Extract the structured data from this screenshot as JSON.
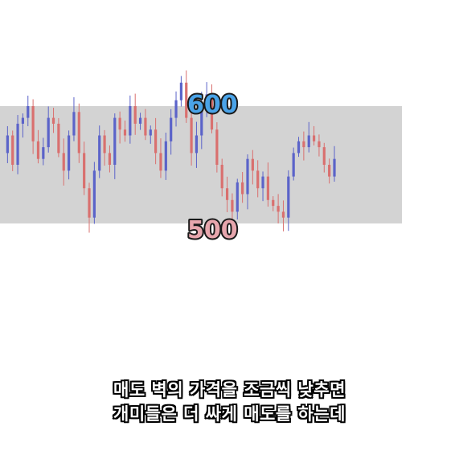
{
  "chart_data": {
    "type": "candlestick",
    "band": {
      "low": 500,
      "high": 600,
      "color": "#d3d3d3"
    },
    "levels": [
      {
        "label": "600",
        "value": 600,
        "color": "#4aa3e8"
      },
      {
        "label": "500",
        "value": 500,
        "color": "#e7a6ad"
      }
    ],
    "colors": {
      "up": "#5b63c9",
      "down": "#d9706f"
    },
    "series": [
      {
        "values": [
          560,
          575,
          550,
          585,
          590,
          600,
          570,
          555,
          565,
          590,
          585,
          560,
          545,
          575,
          595,
          560,
          530,
          505,
          545,
          575,
          560,
          550,
          590,
          580,
          575,
          600,
          585,
          590,
          575,
          580,
          560,
          545,
          570,
          590,
          605,
          620,
          590,
          560,
          575,
          600,
          610,
          580,
          550,
          530,
          520,
          510,
          535,
          525,
          555,
          545,
          530,
          540,
          520,
          515,
          510,
          505,
          540,
          560,
          570,
          565,
          575,
          570,
          565,
          550,
          540,
          555
        ]
      }
    ]
  },
  "caption": {
    "line1": "매도 벽의 가격을 조금씩 낮추면",
    "line2": "개미들은 더 싸게 매도를 하는데"
  }
}
